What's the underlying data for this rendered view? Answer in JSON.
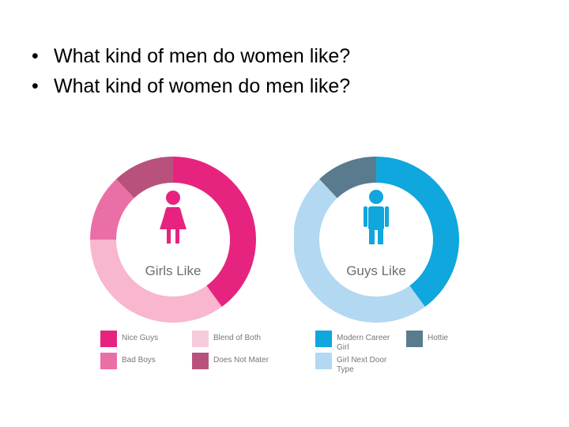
{
  "slide": {
    "bullets": [
      "What kind of men do women like?",
      "What kind of women do men like?"
    ],
    "bullet_symbol": "•"
  },
  "chart_data": [
    {
      "type": "pie",
      "variant": "donut",
      "title": "",
      "center_label": "Girls Like",
      "icon": "female-figure-icon",
      "icon_color": "#e6247f",
      "categories": [
        "Nice Guys",
        "Blend of Both",
        "Bad Boys",
        "Does Not Mater"
      ],
      "values": [
        40,
        35,
        13,
        12
      ],
      "unit": "%",
      "colors": [
        "#e6247f",
        "#f8b6cf",
        "#ea6fa7",
        "#b8527c"
      ]
    },
    {
      "type": "pie",
      "variant": "donut",
      "title": "",
      "center_label": "Guys Like",
      "icon": "male-figure-icon",
      "icon_color": "#10a6de",
      "categories": [
        "Modern Career Girl",
        "Girl Next Door Type",
        "Hottie"
      ],
      "values": [
        40,
        48,
        12
      ],
      "unit": "%",
      "colors": [
        "#10a6de",
        "#b2d8f2",
        "#5a7b8e"
      ]
    }
  ],
  "legends": {
    "girls": [
      {
        "label": "Nice Guys",
        "color": "#e6247f"
      },
      {
        "label": "Blend of Both",
        "color": "#f8cbdc"
      },
      {
        "label": "Bad Boys",
        "color": "#ea6fa7"
      },
      {
        "label": "Does Not Mater",
        "color": "#b8527c"
      }
    ],
    "guys": [
      {
        "label": "Modern Career Girl",
        "color": "#10a6de"
      },
      {
        "label": "Hottie",
        "color": "#5a7b8e"
      },
      {
        "label": "Girl Next Door Type",
        "color": "#b2d8f2"
      }
    ]
  }
}
